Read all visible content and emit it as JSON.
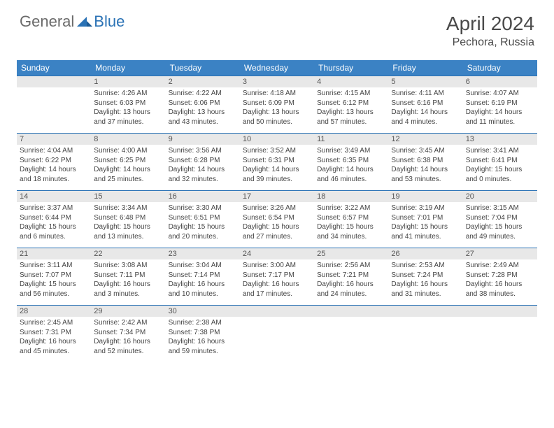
{
  "logo": {
    "text1": "General",
    "text2": "Blue"
  },
  "title": "April 2024",
  "location": "Pechora, Russia",
  "colors": {
    "header_bg": "#3b82c4",
    "header_text": "#ffffff",
    "daynum_bg": "#e8e8e8",
    "border": "#2a72b5",
    "body_text": "#444444",
    "title_text": "#4a4a4a"
  },
  "day_names": [
    "Sunday",
    "Monday",
    "Tuesday",
    "Wednesday",
    "Thursday",
    "Friday",
    "Saturday"
  ],
  "weeks": [
    [
      null,
      {
        "n": "1",
        "sr": "Sunrise: 4:26 AM",
        "ss": "Sunset: 6:03 PM",
        "d1": "Daylight: 13 hours",
        "d2": "and 37 minutes."
      },
      {
        "n": "2",
        "sr": "Sunrise: 4:22 AM",
        "ss": "Sunset: 6:06 PM",
        "d1": "Daylight: 13 hours",
        "d2": "and 43 minutes."
      },
      {
        "n": "3",
        "sr": "Sunrise: 4:18 AM",
        "ss": "Sunset: 6:09 PM",
        "d1": "Daylight: 13 hours",
        "d2": "and 50 minutes."
      },
      {
        "n": "4",
        "sr": "Sunrise: 4:15 AM",
        "ss": "Sunset: 6:12 PM",
        "d1": "Daylight: 13 hours",
        "d2": "and 57 minutes."
      },
      {
        "n": "5",
        "sr": "Sunrise: 4:11 AM",
        "ss": "Sunset: 6:16 PM",
        "d1": "Daylight: 14 hours",
        "d2": "and 4 minutes."
      },
      {
        "n": "6",
        "sr": "Sunrise: 4:07 AM",
        "ss": "Sunset: 6:19 PM",
        "d1": "Daylight: 14 hours",
        "d2": "and 11 minutes."
      }
    ],
    [
      {
        "n": "7",
        "sr": "Sunrise: 4:04 AM",
        "ss": "Sunset: 6:22 PM",
        "d1": "Daylight: 14 hours",
        "d2": "and 18 minutes."
      },
      {
        "n": "8",
        "sr": "Sunrise: 4:00 AM",
        "ss": "Sunset: 6:25 PM",
        "d1": "Daylight: 14 hours",
        "d2": "and 25 minutes."
      },
      {
        "n": "9",
        "sr": "Sunrise: 3:56 AM",
        "ss": "Sunset: 6:28 PM",
        "d1": "Daylight: 14 hours",
        "d2": "and 32 minutes."
      },
      {
        "n": "10",
        "sr": "Sunrise: 3:52 AM",
        "ss": "Sunset: 6:31 PM",
        "d1": "Daylight: 14 hours",
        "d2": "and 39 minutes."
      },
      {
        "n": "11",
        "sr": "Sunrise: 3:49 AM",
        "ss": "Sunset: 6:35 PM",
        "d1": "Daylight: 14 hours",
        "d2": "and 46 minutes."
      },
      {
        "n": "12",
        "sr": "Sunrise: 3:45 AM",
        "ss": "Sunset: 6:38 PM",
        "d1": "Daylight: 14 hours",
        "d2": "and 53 minutes."
      },
      {
        "n": "13",
        "sr": "Sunrise: 3:41 AM",
        "ss": "Sunset: 6:41 PM",
        "d1": "Daylight: 15 hours",
        "d2": "and 0 minutes."
      }
    ],
    [
      {
        "n": "14",
        "sr": "Sunrise: 3:37 AM",
        "ss": "Sunset: 6:44 PM",
        "d1": "Daylight: 15 hours",
        "d2": "and 6 minutes."
      },
      {
        "n": "15",
        "sr": "Sunrise: 3:34 AM",
        "ss": "Sunset: 6:48 PM",
        "d1": "Daylight: 15 hours",
        "d2": "and 13 minutes."
      },
      {
        "n": "16",
        "sr": "Sunrise: 3:30 AM",
        "ss": "Sunset: 6:51 PM",
        "d1": "Daylight: 15 hours",
        "d2": "and 20 minutes."
      },
      {
        "n": "17",
        "sr": "Sunrise: 3:26 AM",
        "ss": "Sunset: 6:54 PM",
        "d1": "Daylight: 15 hours",
        "d2": "and 27 minutes."
      },
      {
        "n": "18",
        "sr": "Sunrise: 3:22 AM",
        "ss": "Sunset: 6:57 PM",
        "d1": "Daylight: 15 hours",
        "d2": "and 34 minutes."
      },
      {
        "n": "19",
        "sr": "Sunrise: 3:19 AM",
        "ss": "Sunset: 7:01 PM",
        "d1": "Daylight: 15 hours",
        "d2": "and 41 minutes."
      },
      {
        "n": "20",
        "sr": "Sunrise: 3:15 AM",
        "ss": "Sunset: 7:04 PM",
        "d1": "Daylight: 15 hours",
        "d2": "and 49 minutes."
      }
    ],
    [
      {
        "n": "21",
        "sr": "Sunrise: 3:11 AM",
        "ss": "Sunset: 7:07 PM",
        "d1": "Daylight: 15 hours",
        "d2": "and 56 minutes."
      },
      {
        "n": "22",
        "sr": "Sunrise: 3:08 AM",
        "ss": "Sunset: 7:11 PM",
        "d1": "Daylight: 16 hours",
        "d2": "and 3 minutes."
      },
      {
        "n": "23",
        "sr": "Sunrise: 3:04 AM",
        "ss": "Sunset: 7:14 PM",
        "d1": "Daylight: 16 hours",
        "d2": "and 10 minutes."
      },
      {
        "n": "24",
        "sr": "Sunrise: 3:00 AM",
        "ss": "Sunset: 7:17 PM",
        "d1": "Daylight: 16 hours",
        "d2": "and 17 minutes."
      },
      {
        "n": "25",
        "sr": "Sunrise: 2:56 AM",
        "ss": "Sunset: 7:21 PM",
        "d1": "Daylight: 16 hours",
        "d2": "and 24 minutes."
      },
      {
        "n": "26",
        "sr": "Sunrise: 2:53 AM",
        "ss": "Sunset: 7:24 PM",
        "d1": "Daylight: 16 hours",
        "d2": "and 31 minutes."
      },
      {
        "n": "27",
        "sr": "Sunrise: 2:49 AM",
        "ss": "Sunset: 7:28 PM",
        "d1": "Daylight: 16 hours",
        "d2": "and 38 minutes."
      }
    ],
    [
      {
        "n": "28",
        "sr": "Sunrise: 2:45 AM",
        "ss": "Sunset: 7:31 PM",
        "d1": "Daylight: 16 hours",
        "d2": "and 45 minutes."
      },
      {
        "n": "29",
        "sr": "Sunrise: 2:42 AM",
        "ss": "Sunset: 7:34 PM",
        "d1": "Daylight: 16 hours",
        "d2": "and 52 minutes."
      },
      {
        "n": "30",
        "sr": "Sunrise: 2:38 AM",
        "ss": "Sunset: 7:38 PM",
        "d1": "Daylight: 16 hours",
        "d2": "and 59 minutes."
      },
      null,
      null,
      null,
      null
    ]
  ]
}
